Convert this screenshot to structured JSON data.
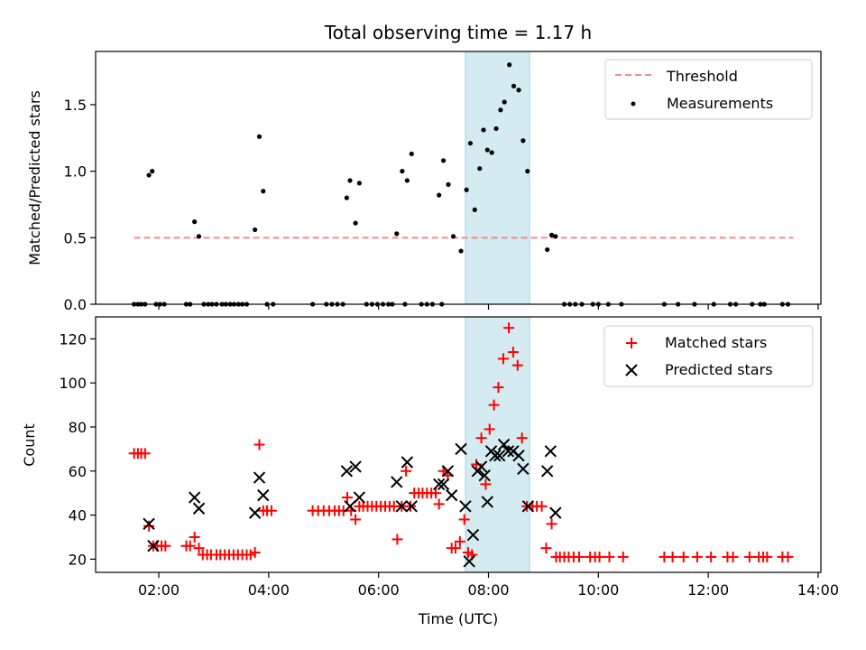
{
  "chart_data": [
    {
      "type": "scatter",
      "title": "Total observing time = 1.17 h",
      "ylabel": "Matched/Predicted stars",
      "xlim": [
        0.85,
        14.05
      ],
      "ylim": [
        0,
        1.9
      ],
      "yticks": [
        0.0,
        0.5,
        1.0,
        1.5
      ],
      "ytick_labels": [
        "0.0",
        "0.5",
        "1.0",
        "1.5"
      ],
      "xticks": [
        2,
        4,
        6,
        8,
        10,
        12,
        14
      ],
      "legend": {
        "position": "top-right",
        "entries": [
          "Threshold",
          "Measurements"
        ]
      },
      "shaded_span": {
        "x": [
          7.58,
          8.75
        ],
        "color": "#d3ebf1"
      },
      "threshold": {
        "name": "Threshold",
        "y": 0.5,
        "x_range": [
          1.55,
          13.55
        ],
        "color": "#f48a8a"
      },
      "series": [
        {
          "name": "Measurements",
          "color": "#000000",
          "points": [
            [
              1.55,
              0
            ],
            [
              1.62,
              0
            ],
            [
              1.68,
              0
            ],
            [
              1.75,
              0
            ],
            [
              1.82,
              0.97
            ],
            [
              1.88,
              1.0
            ],
            [
              1.95,
              0
            ],
            [
              2.02,
              0
            ],
            [
              2.1,
              0
            ],
            [
              2.5,
              0
            ],
            [
              2.57,
              0
            ],
            [
              2.65,
              0.62
            ],
            [
              2.73,
              0.51
            ],
            [
              2.82,
              0
            ],
            [
              2.9,
              0
            ],
            [
              2.97,
              0
            ],
            [
              3.05,
              0
            ],
            [
              3.15,
              0
            ],
            [
              3.22,
              0
            ],
            [
              3.3,
              0
            ],
            [
              3.37,
              0
            ],
            [
              3.45,
              0
            ],
            [
              3.52,
              0
            ],
            [
              3.6,
              0
            ],
            [
              3.75,
              0.56
            ],
            [
              3.83,
              1.26
            ],
            [
              3.9,
              0.85
            ],
            [
              3.97,
              0
            ],
            [
              4.08,
              0
            ],
            [
              4.8,
              0
            ],
            [
              5.05,
              0
            ],
            [
              5.15,
              0
            ],
            [
              5.25,
              0
            ],
            [
              5.35,
              0
            ],
            [
              5.42,
              0.8
            ],
            [
              5.48,
              0.93
            ],
            [
              5.58,
              0.61
            ],
            [
              5.65,
              0.91
            ],
            [
              5.78,
              0
            ],
            [
              5.88,
              0
            ],
            [
              5.98,
              0
            ],
            [
              6.08,
              0
            ],
            [
              6.18,
              0
            ],
            [
              6.25,
              0
            ],
            [
              6.33,
              0.53
            ],
            [
              6.43,
              1.0
            ],
            [
              6.52,
              0.93
            ],
            [
              6.6,
              1.13
            ],
            [
              6.48,
              0
            ],
            [
              6.78,
              0
            ],
            [
              6.88,
              0
            ],
            [
              6.98,
              0
            ],
            [
              7.1,
              0.82
            ],
            [
              7.18,
              1.08
            ],
            [
              7.27,
              0.9
            ],
            [
              7.36,
              0.51
            ],
            [
              7.15,
              0
            ],
            [
              7.5,
              0.4
            ],
            [
              7.6,
              0.86
            ],
            [
              7.67,
              1.21
            ],
            [
              7.75,
              0.71
            ],
            [
              7.84,
              1.02
            ],
            [
              7.91,
              1.31
            ],
            [
              7.98,
              1.16
            ],
            [
              8.06,
              1.14
            ],
            [
              8.14,
              1.32
            ],
            [
              8.22,
              1.46
            ],
            [
              8.29,
              1.52
            ],
            [
              8.38,
              1.8
            ],
            [
              8.46,
              1.64
            ],
            [
              8.55,
              1.61
            ],
            [
              8.63,
              1.23
            ],
            [
              8.71,
              1.0
            ],
            [
              9.07,
              0.41
            ],
            [
              9.15,
              0.52
            ],
            [
              9.22,
              0.51
            ],
            [
              9.38,
              0
            ],
            [
              9.48,
              0
            ],
            [
              9.58,
              0
            ],
            [
              9.7,
              0
            ],
            [
              9.9,
              0
            ],
            [
              10.0,
              0
            ],
            [
              10.18,
              0
            ],
            [
              10.42,
              0
            ],
            [
              11.2,
              0
            ],
            [
              11.45,
              0
            ],
            [
              11.75,
              0
            ],
            [
              12.1,
              0
            ],
            [
              12.4,
              0
            ],
            [
              12.5,
              0
            ],
            [
              12.8,
              0
            ],
            [
              12.95,
              0
            ],
            [
              13.02,
              0
            ],
            [
              13.35,
              0
            ],
            [
              13.45,
              0
            ]
          ]
        }
      ]
    },
    {
      "type": "scatter",
      "xlabel": "Time (UTC)",
      "ylabel": "Count",
      "xlim": [
        0.85,
        14.05
      ],
      "ylim": [
        14,
        130
      ],
      "yticks": [
        20,
        40,
        60,
        80,
        100,
        120
      ],
      "ytick_labels": [
        "20",
        "40",
        "60",
        "80",
        "100",
        "120"
      ],
      "xticks": [
        2,
        4,
        6,
        8,
        10,
        12,
        14
      ],
      "xtick_labels": [
        "02:00",
        "04:00",
        "06:00",
        "08:00",
        "10:00",
        "12:00",
        "14:00"
      ],
      "legend": {
        "position": "top-right",
        "entries": [
          "Matched stars",
          "Predicted stars"
        ]
      },
      "shaded_span": {
        "x": [
          7.58,
          8.75
        ],
        "color": "#d3ebf1"
      },
      "series": [
        {
          "name": "Matched stars",
          "marker": "+",
          "color": "#ff0000",
          "points": [
            [
              1.55,
              68
            ],
            [
              1.62,
              68
            ],
            [
              1.68,
              68
            ],
            [
              1.75,
              68
            ],
            [
              1.82,
              35
            ],
            [
              1.9,
              26
            ],
            [
              1.97,
              26
            ],
            [
              2.05,
              26
            ],
            [
              2.12,
              26
            ],
            [
              2.5,
              26
            ],
            [
              2.57,
              26
            ],
            [
              2.65,
              30
            ],
            [
              2.73,
              25
            ],
            [
              2.8,
              22
            ],
            [
              2.88,
              22
            ],
            [
              2.95,
              22
            ],
            [
              3.05,
              22
            ],
            [
              3.12,
              22
            ],
            [
              3.2,
              22
            ],
            [
              3.28,
              22
            ],
            [
              3.36,
              22
            ],
            [
              3.44,
              22
            ],
            [
              3.52,
              22
            ],
            [
              3.6,
              22
            ],
            [
              3.67,
              22
            ],
            [
              3.75,
              23
            ],
            [
              3.83,
              72
            ],
            [
              3.9,
              42
            ],
            [
              3.97,
              42
            ],
            [
              4.05,
              42
            ],
            [
              4.8,
              42
            ],
            [
              4.9,
              42
            ],
            [
              5.0,
              42
            ],
            [
              5.1,
              42
            ],
            [
              5.2,
              42
            ],
            [
              5.28,
              42
            ],
            [
              5.36,
              42
            ],
            [
              5.43,
              48
            ],
            [
              5.5,
              42
            ],
            [
              5.58,
              38
            ],
            [
              5.65,
              44
            ],
            [
              5.72,
              44
            ],
            [
              5.8,
              44
            ],
            [
              5.88,
              44
            ],
            [
              5.96,
              44
            ],
            [
              6.04,
              44
            ],
            [
              6.12,
              44
            ],
            [
              6.2,
              44
            ],
            [
              6.28,
              44
            ],
            [
              6.34,
              29
            ],
            [
              6.42,
              44
            ],
            [
              6.5,
              60
            ],
            [
              6.58,
              44
            ],
            [
              6.65,
              50
            ],
            [
              6.73,
              50
            ],
            [
              6.8,
              50
            ],
            [
              6.88,
              50
            ],
            [
              6.96,
              50
            ],
            [
              7.04,
              50
            ],
            [
              7.1,
              45
            ],
            [
              7.18,
              60
            ],
            [
              7.26,
              58
            ],
            [
              7.33,
              25
            ],
            [
              7.4,
              25
            ],
            [
              7.48,
              28
            ],
            [
              7.56,
              38
            ],
            [
              7.63,
              23
            ],
            [
              7.7,
              22
            ],
            [
              7.78,
              63
            ],
            [
              7.87,
              75
            ],
            [
              7.95,
              54
            ],
            [
              8.02,
              79
            ],
            [
              8.1,
              90
            ],
            [
              8.18,
              98
            ],
            [
              8.27,
              111
            ],
            [
              8.37,
              125
            ],
            [
              8.45,
              114
            ],
            [
              8.53,
              108
            ],
            [
              8.61,
              75
            ],
            [
              8.7,
              44
            ],
            [
              8.8,
              44
            ],
            [
              8.88,
              44
            ],
            [
              8.97,
              44
            ],
            [
              9.05,
              25
            ],
            [
              9.15,
              36
            ],
            [
              9.23,
              21
            ],
            [
              9.3,
              21
            ],
            [
              9.38,
              21
            ],
            [
              9.46,
              21
            ],
            [
              9.55,
              21
            ],
            [
              9.65,
              21
            ],
            [
              9.85,
              21
            ],
            [
              9.94,
              21
            ],
            [
              10.02,
              21
            ],
            [
              10.2,
              21
            ],
            [
              10.45,
              21
            ],
            [
              11.2,
              21
            ],
            [
              11.35,
              21
            ],
            [
              11.55,
              21
            ],
            [
              11.8,
              21
            ],
            [
              12.05,
              21
            ],
            [
              12.35,
              21
            ],
            [
              12.45,
              21
            ],
            [
              12.75,
              21
            ],
            [
              12.92,
              21
            ],
            [
              13.0,
              21
            ],
            [
              13.07,
              21
            ],
            [
              13.35,
              21
            ],
            [
              13.45,
              21
            ]
          ]
        },
        {
          "name": "Predicted stars",
          "marker": "x",
          "color": "#000000",
          "points": [
            [
              1.82,
              36
            ],
            [
              1.9,
              26
            ],
            [
              2.65,
              48
            ],
            [
              2.73,
              43
            ],
            [
              3.75,
              41
            ],
            [
              3.83,
              57
            ],
            [
              3.9,
              49
            ],
            [
              5.42,
              60
            ],
            [
              5.48,
              44
            ],
            [
              5.58,
              62
            ],
            [
              5.65,
              48
            ],
            [
              6.33,
              55
            ],
            [
              6.42,
              44
            ],
            [
              6.52,
              64
            ],
            [
              6.6,
              44
            ],
            [
              7.1,
              54
            ],
            [
              7.18,
              54
            ],
            [
              7.26,
              60
            ],
            [
              7.33,
              49
            ],
            [
              7.5,
              70
            ],
            [
              7.58,
              44
            ],
            [
              7.65,
              19
            ],
            [
              7.72,
              31
            ],
            [
              7.8,
              60
            ],
            [
              7.87,
              62
            ],
            [
              7.93,
              58
            ],
            [
              7.98,
              46
            ],
            [
              8.05,
              69
            ],
            [
              8.12,
              67
            ],
            [
              8.2,
              67
            ],
            [
              8.28,
              72
            ],
            [
              8.36,
              69
            ],
            [
              8.45,
              69
            ],
            [
              8.55,
              67
            ],
            [
              8.63,
              61
            ],
            [
              8.72,
              44
            ],
            [
              9.07,
              60
            ],
            [
              9.13,
              69
            ],
            [
              9.22,
              41
            ]
          ]
        }
      ]
    }
  ]
}
